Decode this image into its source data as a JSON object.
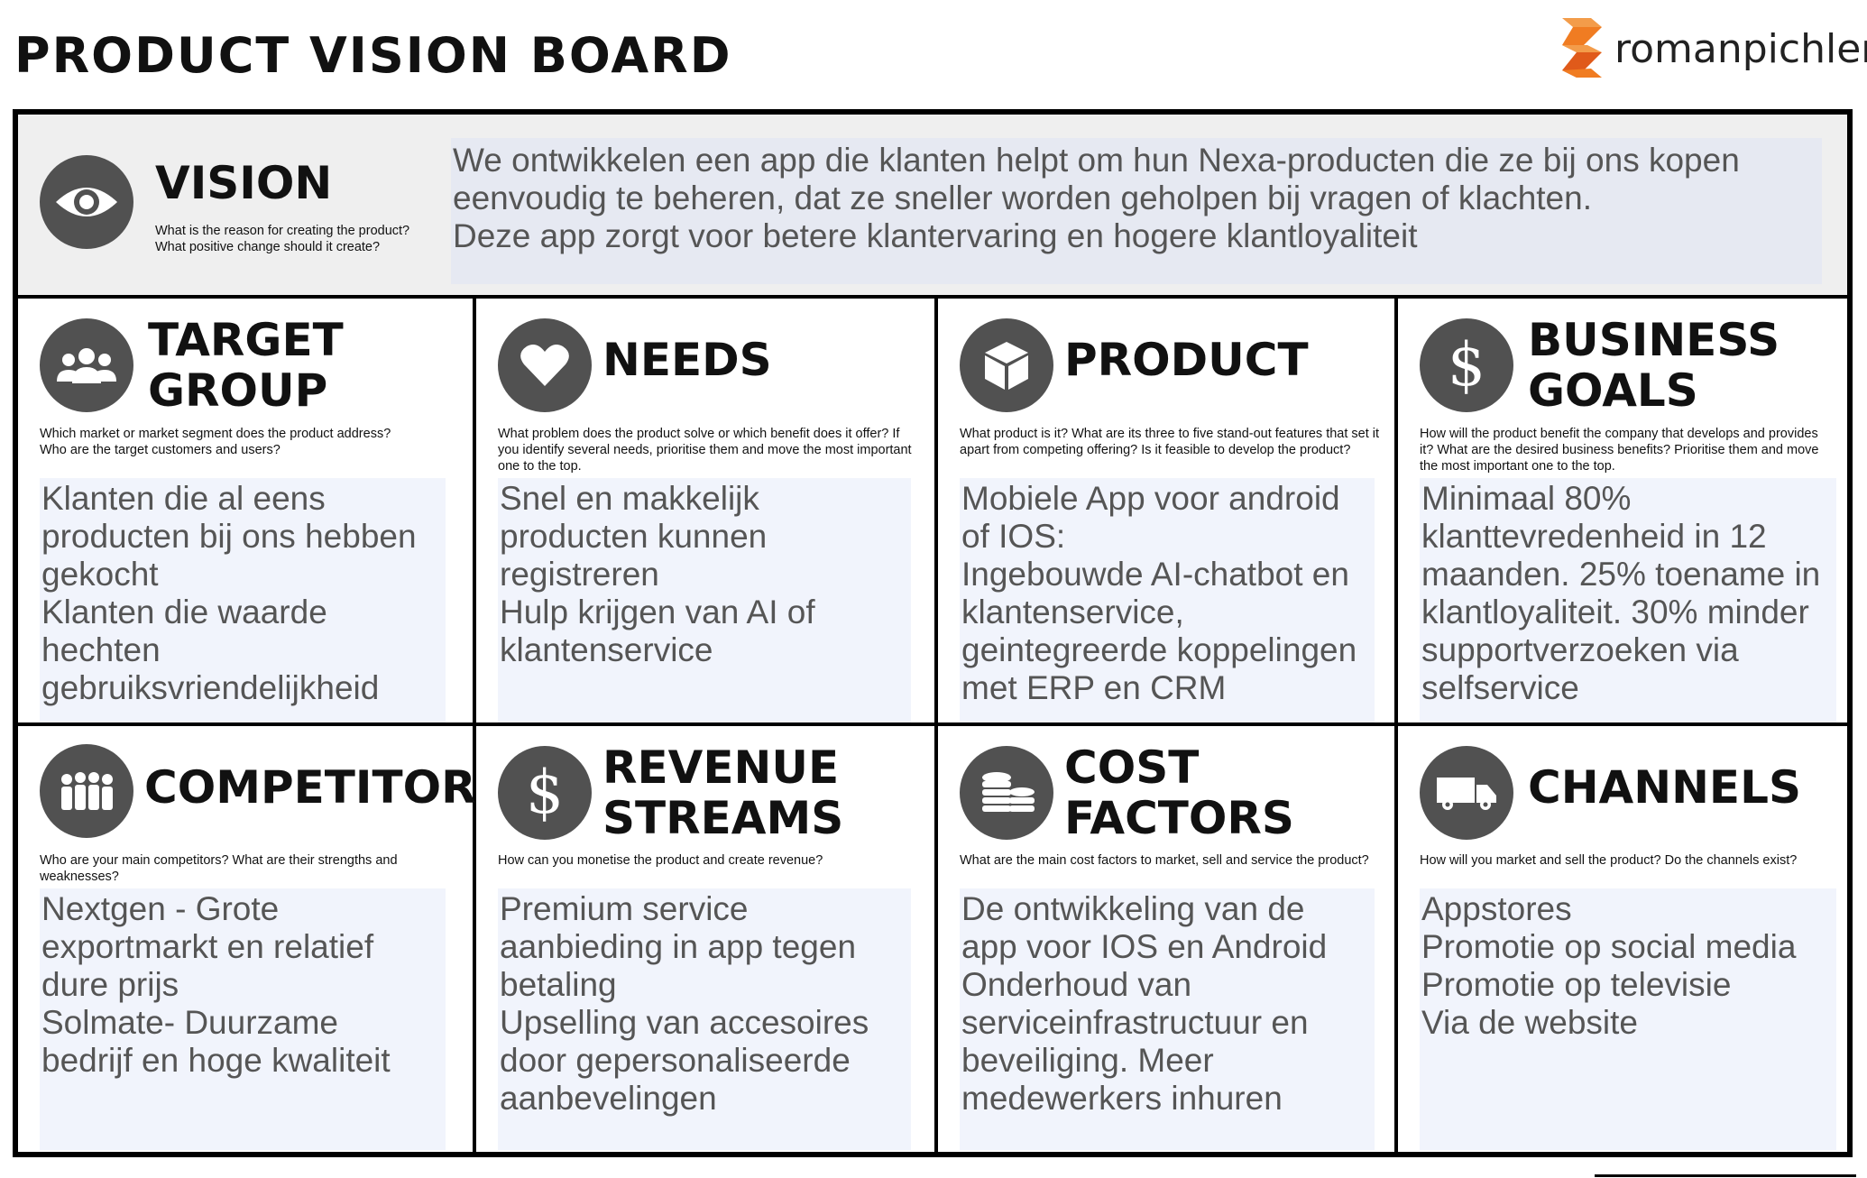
{
  "title": "PRODUCT VISION BOARD",
  "logo": {
    "text": "romanpichler",
    "colors": [
      "#f07c22",
      "#e05a1a",
      "#f39c4a"
    ]
  },
  "vision": {
    "heading": "VISION",
    "question": "What is the reason for creating the product?\nWhat positive change should it create?",
    "content": "We ontwikkelen een app die klanten helpt om hun Nexa-producten die ze bij ons kopen\neenvoudig te beheren, dat ze sneller worden geholpen bij vragen of klachten.\nDeze app zorgt voor betere klantervaring en hogere klantloyaliteit"
  },
  "sections": {
    "target_group": {
      "heading": "TARGET\nGROUP",
      "question": "Which market or market segment does the product address?\nWho are the target customers and users?",
      "content": "Klanten die al eens\nproducten bij ons hebben\ngekocht\nKlanten die waarde\nhechten\ngebruiksvriendelijkheid"
    },
    "needs": {
      "heading": "NEEDS",
      "question": "What problem does the product solve or which benefit does it offer? If you identify several needs, prioritise them and move the most important one to the top.",
      "content": "Snel en makkelijk\nproducten kunnen\nregistreren\nHulp krijgen van AI of\nklantenservice"
    },
    "product": {
      "heading": "PRODUCT",
      "question": "What product is it? What are its three to five stand-out features that set it apart from competing offering? Is it feasible to develop the product?",
      "content": "Mobiele App voor android\nof IOS:\nIngebouwde AI-chatbot en\nklantenservice,\ngeintegreerde koppelingen\nmet ERP en CRM"
    },
    "business_goals": {
      "heading": "BUSINESS\nGOALS",
      "question": "How will the product benefit the company that  develops and provides it? What are the desired business benefits? Prioritise them and move the most important one to the top.",
      "content": "Minimaal 80%\nklanttevredenheid in 12\nmaanden. 25% toename in\nklantloyaliteit. 30% minder\nsupportverzoeken via\nselfservice",
      "icon_text": "$"
    },
    "competitors": {
      "heading": "COMPETITORS",
      "question": "Who are your main competitors? What are their strengths and weaknesses?",
      "content": "Nextgen - Grote\nexportmarkt en relatief\ndure prijs\nSolmate- Duurzame\nbedrijf en hoge kwaliteit"
    },
    "revenue_streams": {
      "heading": "REVENUE\nSTREAMS",
      "question": "How can you monetise the product and create revenue?",
      "content": "Premium service\naanbieding in app tegen\nbetaling\nUpselling van accesoires\ndoor gepersonaliseerde\naanbevelingen",
      "icon_text": "$"
    },
    "cost_factors": {
      "heading": "COST\nFACTORS",
      "question": "What are the main cost factors to market, sell and service the product?",
      "content": "De ontwikkeling van de\napp voor IOS en Android\nOnderhoud van\nserviceinfrastructuur en\nbeveiliging. Meer\nmedewerkers inhuren"
    },
    "channels": {
      "heading": "CHANNELS",
      "question": "How will you market and sell the product? Do the channels exist?",
      "content": "Appstores\nPromotie op social media\nPromotie op televisie\nVia de website"
    }
  },
  "colors": {
    "icon_circle": "#515151",
    "content_bg": "#f1f4fc",
    "vision_bg": "#efefef",
    "content_text": "#555555"
  },
  "icons": {
    "vision": "eye-icon",
    "target_group": "group-icon",
    "needs": "heart-icon",
    "product": "cube-icon",
    "business_goals": "dollar-icon",
    "competitors": "people-icon",
    "revenue_streams": "dollar-icon",
    "cost_factors": "coins-icon",
    "channels": "truck-icon"
  }
}
